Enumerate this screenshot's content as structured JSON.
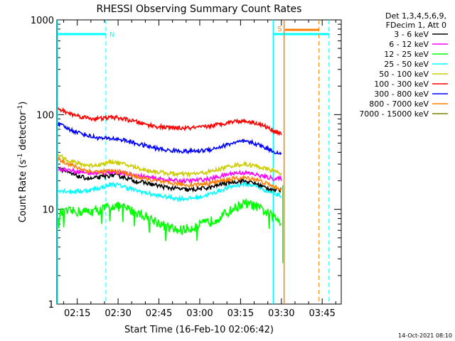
{
  "chart_data": {
    "type": "line",
    "title": "RHESSI Observing Summary Count Rates",
    "xlabel": "Start Time (16-Feb-10 02:06:42)",
    "ylabel_main": "Count Rate (s",
    "ylabel_sup1": "-1",
    "ylabel_mid": " detector",
    "ylabel_sup2": "-1",
    "ylabel_end": ")",
    "yscale": "log",
    "ylim": [
      1,
      1000
    ],
    "xlim_minutes": [
      7.5,
      112
    ],
    "x_tick_labels": [
      "02:15",
      "02:30",
      "02:45",
      "03:00",
      "03:15",
      "03:30",
      "03:45"
    ],
    "x_tick_minutes": [
      15,
      30,
      45,
      60,
      75,
      90,
      105
    ],
    "y_tick_labels": [
      "1",
      "10",
      "100",
      "1000"
    ],
    "y_tick_values": [
      1,
      10,
      100,
      1000
    ],
    "legend_header": [
      "Det 1,3,4,5,6,9,",
      "FDecim 1, Att 0"
    ],
    "series": [
      {
        "name": "3 - 6 keV",
        "color": "#000000",
        "x": [
          8,
          12,
          16,
          20,
          24,
          28,
          32,
          36,
          40,
          44,
          48,
          52,
          56,
          60,
          64,
          68,
          72,
          76,
          80,
          84,
          88,
          90
        ],
        "values": [
          28,
          24,
          22,
          21,
          22,
          23,
          22,
          20,
          19,
          18,
          17,
          16.5,
          16,
          16.5,
          17,
          18.5,
          19.5,
          20,
          19,
          17,
          16,
          16
        ]
      },
      {
        "name": "6 - 12 keV",
        "color": "#ff00ff",
        "x": [
          8,
          12,
          16,
          20,
          24,
          28,
          32,
          36,
          40,
          44,
          48,
          52,
          56,
          60,
          64,
          68,
          72,
          76,
          80,
          84,
          88,
          90
        ],
        "values": [
          27,
          26,
          25,
          24,
          24,
          25,
          24,
          23,
          22,
          21,
          20.5,
          20,
          20,
          20.5,
          21,
          22.5,
          24,
          24.5,
          23.5,
          22,
          21,
          21
        ]
      },
      {
        "name": "12 - 25 keV",
        "color": "#00ff00",
        "x": [
          8,
          12,
          16,
          20,
          24,
          28,
          32,
          36,
          40,
          44,
          48,
          52,
          56,
          60,
          64,
          68,
          72,
          76,
          80,
          84,
          88,
          90
        ],
        "values": [
          9,
          9.5,
          9.5,
          9.5,
          10,
          11,
          10.5,
          9.5,
          8.5,
          7.5,
          6.5,
          6,
          6.3,
          6.8,
          7.5,
          8.5,
          10,
          11.5,
          11,
          9.5,
          8,
          7.5
        ]
      },
      {
        "name": "25 - 50 keV",
        "color": "#00ffff",
        "x": [
          8,
          12,
          16,
          20,
          24,
          28,
          32,
          36,
          40,
          44,
          48,
          52,
          56,
          60,
          64,
          68,
          72,
          76,
          80,
          84,
          88,
          90
        ],
        "values": [
          16,
          15.5,
          15.5,
          16,
          17,
          18.5,
          17.5,
          16,
          15,
          14,
          13.5,
          13,
          13,
          13.5,
          14.5,
          16,
          17.5,
          18.5,
          18,
          16,
          14.5,
          14
        ]
      },
      {
        "name": "50 - 100 keV",
        "color": "#cccc00",
        "x": [
          8,
          12,
          16,
          20,
          24,
          28,
          32,
          36,
          40,
          44,
          48,
          52,
          56,
          60,
          64,
          68,
          72,
          76,
          80,
          84,
          88,
          90
        ],
        "values": [
          37,
          33,
          30,
          29,
          30,
          32,
          30,
          28,
          26,
          25,
          24,
          23.5,
          23.5,
          24,
          25,
          27,
          29,
          30,
          29,
          27,
          25,
          24
        ]
      },
      {
        "name": "100 - 300 keV",
        "color": "#ff0000",
        "x": [
          8,
          12,
          16,
          20,
          24,
          28,
          32,
          36,
          40,
          44,
          48,
          52,
          56,
          60,
          64,
          68,
          72,
          76,
          80,
          84,
          88,
          90
        ],
        "values": [
          115,
          103,
          96,
          91,
          91,
          94,
          90,
          85,
          79,
          75,
          73,
          72,
          72,
          73,
          76,
          80,
          85,
          86,
          83,
          75,
          66,
          63
        ]
      },
      {
        "name": "300 - 800 keV",
        "color": "#0000ff",
        "x": [
          8,
          12,
          16,
          20,
          24,
          28,
          32,
          36,
          40,
          44,
          48,
          52,
          56,
          60,
          64,
          68,
          72,
          76,
          80,
          84,
          88,
          90
        ],
        "values": [
          80,
          70,
          64,
          59,
          56,
          56,
          54,
          50,
          47,
          44,
          42,
          41.5,
          41,
          41.5,
          43,
          46,
          50,
          52,
          50,
          45,
          40,
          38
        ]
      },
      {
        "name": "800 - 7000 keV",
        "color": "#ff8000",
        "x": [
          8,
          12,
          16,
          20,
          24,
          28,
          32,
          36,
          40,
          44,
          48,
          52,
          56,
          60,
          64,
          68,
          72,
          76,
          80,
          84,
          88,
          90
        ],
        "values": [
          34,
          30,
          27,
          25,
          25,
          25.5,
          24.5,
          22.5,
          21,
          20,
          19,
          18.5,
          18,
          18.5,
          19,
          20,
          21,
          21.5,
          21,
          19,
          17,
          16.5
        ]
      },
      {
        "name": "7000 - 15000 keV",
        "color": "#808000",
        "x": [],
        "values": []
      }
    ],
    "annotations": [
      {
        "text": "N",
        "color": "#00ffff"
      },
      {
        "text": "S",
        "color": "#ff8000"
      }
    ]
  },
  "footer": {
    "timestamp": "14-Oct-2021 08:10"
  }
}
